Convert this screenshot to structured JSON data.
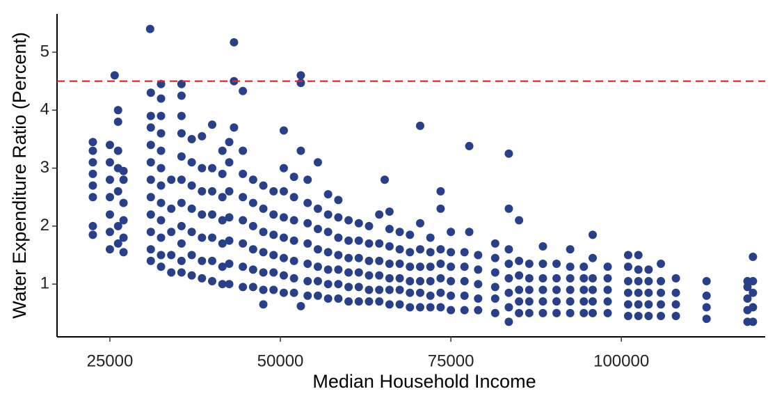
{
  "chart_data": {
    "type": "scatter",
    "xlabel": "Median Household Income",
    "ylabel": "Water Expenditure Ratio (Percent)",
    "color": "#283f8a",
    "xlim": [
      17250,
      121100
    ],
    "ylim": [
      0.09,
      5.66
    ],
    "xticks": [
      25000,
      50000,
      75000,
      100000
    ],
    "yticks": [
      1,
      2,
      3,
      4,
      5
    ],
    "reference_line": {
      "value": 4.5,
      "color": "#e3262b",
      "dashed": true
    },
    "x": [
      22500,
      22500,
      22500,
      22500,
      22500,
      22500,
      22500,
      22500,
      25000,
      25000,
      25000,
      25000,
      25000,
      25000,
      25000,
      25700,
      26200,
      26200,
      26200,
      26200,
      26200,
      26200,
      26200,
      27000,
      27000,
      27000,
      27000,
      27000,
      27000,
      30900,
      31000,
      31000,
      31000,
      31000,
      31000,
      31000,
      31000,
      31000,
      31000,
      31000,
      31000,
      32500,
      32500,
      32500,
      32500,
      32500,
      32500,
      32500,
      32500,
      32500,
      32500,
      32500,
      32500,
      34000,
      34000,
      34000,
      34000,
      34000,
      35500,
      35500,
      35500,
      35500,
      35500,
      35500,
      35500,
      35500,
      35500,
      35500,
      35500,
      37000,
      37000,
      37000,
      37000,
      37000,
      37000,
      37000,
      38500,
      38500,
      38500,
      38500,
      38500,
      38500,
      38500,
      40000,
      40000,
      40000,
      40000,
      40000,
      40000,
      40000,
      41500,
      41500,
      41500,
      41500,
      41500,
      41500,
      41500,
      42500,
      42500,
      42500,
      42500,
      42500,
      42500,
      42500,
      43200,
      43200,
      43200,
      44500,
      44500,
      44500,
      44500,
      44500,
      44500,
      44500,
      44500,
      46000,
      46000,
      46000,
      46000,
      46000,
      46000,
      47500,
      47500,
      47500,
      47500,
      47500,
      47500,
      47500,
      49000,
      49000,
      49000,
      49000,
      49000,
      49000,
      50500,
      50500,
      50500,
      50500,
      50500,
      50500,
      50500,
      50500,
      52000,
      52000,
      52000,
      52000,
      52000,
      52000,
      52000,
      53000,
      53000,
      53000,
      53000,
      54000,
      54000,
      54000,
      54000,
      54000,
      54000,
      54000,
      55500,
      55500,
      55500,
      55500,
      55500,
      55500,
      55500,
      57000,
      57000,
      57000,
      57000,
      57000,
      57000,
      57000,
      58500,
      58500,
      58500,
      58500,
      58500,
      58500,
      58500,
      60000,
      60000,
      60000,
      60000,
      60000,
      60000,
      61500,
      61500,
      61500,
      61500,
      61500,
      61500,
      63000,
      63000,
      63000,
      63000,
      63000,
      63000,
      64500,
      64500,
      64500,
      64500,
      64500,
      64500,
      65300,
      66000,
      66000,
      66000,
      66000,
      66000,
      66000,
      66000,
      67500,
      67500,
      67500,
      67500,
      67500,
      67500,
      69000,
      69000,
      69000,
      69000,
      69000,
      69000,
      70500,
      70500,
      70500,
      70500,
      70500,
      70500,
      70500,
      72000,
      72000,
      72000,
      72000,
      72000,
      72000,
      73500,
      73500,
      73500,
      73500,
      73500,
      73500,
      73500,
      75000,
      75000,
      75000,
      75000,
      75000,
      75000,
      77000,
      77000,
      77000,
      77000,
      77000,
      77700,
      77700,
      79000,
      79000,
      79000,
      79000,
      79000,
      81500,
      81500,
      81500,
      81500,
      81500,
      81500,
      83500,
      83500,
      83500,
      83500,
      83500,
      83500,
      83500,
      83500,
      85000,
      85000,
      85000,
      85000,
      85000,
      85000,
      86500,
      86500,
      86500,
      86500,
      86500,
      88500,
      88500,
      88500,
      88500,
      88500,
      88500,
      90500,
      90500,
      90500,
      90500,
      90500,
      92500,
      92500,
      92500,
      92500,
      92500,
      92500,
      94500,
      94500,
      94500,
      94500,
      94500,
      95800,
      95800,
      95800,
      95800,
      95800,
      95800,
      98000,
      98000,
      98000,
      98000,
      98000,
      101000,
      101000,
      101000,
      101000,
      101000,
      101000,
      102500,
      102500,
      102500,
      102500,
      102500,
      102500,
      104000,
      104000,
      104000,
      104000,
      104000,
      105800,
      105800,
      105800,
      105800,
      105800,
      108000,
      108000,
      108000,
      108000,
      112500,
      112500,
      112500,
      112500,
      118500,
      118500,
      118500,
      118500,
      118500,
      119300,
      119300,
      119300,
      119300,
      119300
    ],
    "values": [
      1.85,
      2.0,
      2.5,
      2.7,
      2.9,
      3.1,
      3.3,
      3.45,
      1.6,
      1.9,
      2.2,
      2.5,
      2.8,
      3.1,
      3.4,
      4.6,
      1.7,
      2.0,
      2.6,
      3.0,
      3.3,
      3.8,
      4.0,
      1.55,
      1.8,
      2.1,
      2.4,
      2.8,
      2.95,
      5.4,
      1.4,
      1.6,
      1.9,
      2.2,
      2.5,
      2.8,
      3.1,
      3.4,
      3.7,
      3.9,
      4.3,
      1.3,
      1.5,
      1.8,
      2.1,
      2.4,
      2.7,
      3.0,
      3.3,
      3.6,
      3.9,
      4.2,
      4.45,
      1.2,
      1.5,
      1.9,
      2.3,
      2.8,
      1.2,
      1.4,
      1.7,
      2.0,
      2.4,
      2.8,
      3.2,
      3.6,
      3.9,
      4.25,
      4.45,
      1.15,
      1.5,
      1.9,
      2.3,
      2.7,
      3.1,
      3.5,
      1.1,
      1.4,
      1.8,
      2.2,
      2.6,
      3.0,
      3.55,
      1.05,
      1.4,
      1.8,
      2.2,
      2.6,
      3.0,
      3.75,
      1.0,
      1.3,
      1.7,
      2.1,
      2.5,
      2.9,
      3.3,
      1.0,
      1.35,
      1.75,
      2.15,
      2.6,
      3.1,
      3.45,
      5.17,
      4.5,
      3.7,
      0.95,
      1.3,
      1.7,
      2.1,
      2.5,
      2.9,
      3.3,
      4.33,
      0.95,
      1.25,
      1.6,
      2.0,
      2.4,
      2.8,
      0.65,
      0.9,
      1.2,
      1.55,
      1.9,
      2.3,
      2.7,
      0.9,
      1.2,
      1.5,
      1.85,
      2.2,
      2.6,
      0.85,
      1.15,
      1.45,
      1.8,
      2.15,
      2.6,
      3.0,
      3.65,
      0.85,
      1.1,
      1.4,
      1.75,
      2.1,
      2.5,
      2.85,
      0.62,
      4.6,
      4.47,
      3.3,
      0.8,
      1.05,
      1.35,
      1.7,
      2.05,
      2.4,
      2.8,
      0.8,
      1.05,
      1.3,
      1.6,
      1.95,
      2.3,
      3.1,
      0.75,
      1.0,
      1.25,
      1.55,
      1.9,
      2.2,
      2.55,
      0.75,
      1.0,
      1.25,
      1.5,
      1.8,
      2.15,
      2.45,
      0.7,
      0.95,
      1.2,
      1.45,
      1.75,
      2.1,
      0.7,
      0.95,
      1.2,
      1.45,
      1.75,
      2.05,
      0.7,
      0.9,
      1.15,
      1.4,
      1.7,
      2.0,
      0.7,
      0.9,
      1.15,
      1.4,
      1.7,
      2.2,
      2.8,
      0.65,
      0.9,
      1.1,
      1.35,
      1.65,
      1.95,
      2.25,
      0.65,
      0.9,
      1.1,
      1.35,
      1.6,
      1.9,
      0.6,
      0.85,
      1.05,
      1.3,
      1.55,
      1.85,
      0.6,
      0.85,
      1.05,
      1.3,
      1.6,
      2.05,
      3.73,
      0.6,
      0.8,
      1.05,
      1.3,
      1.55,
      1.8,
      0.6,
      0.85,
      1.1,
      1.35,
      1.6,
      2.3,
      2.6,
      0.55,
      0.8,
      1.05,
      1.3,
      1.55,
      1.9,
      0.55,
      0.8,
      1.05,
      1.3,
      1.55,
      3.38,
      1.9,
      0.55,
      0.75,
      1.0,
      1.25,
      1.5,
      0.5,
      0.75,
      0.95,
      1.2,
      1.45,
      1.7,
      0.35,
      0.6,
      0.85,
      1.1,
      1.35,
      1.6,
      2.3,
      3.25,
      0.5,
      0.7,
      0.9,
      1.15,
      1.4,
      2.1,
      0.5,
      0.7,
      0.9,
      1.1,
      1.35,
      0.5,
      0.7,
      0.9,
      1.1,
      1.35,
      1.65,
      0.5,
      0.7,
      0.9,
      1.1,
      1.35,
      0.5,
      0.7,
      0.9,
      1.1,
      1.3,
      1.6,
      0.5,
      0.7,
      0.9,
      1.1,
      1.3,
      0.5,
      0.7,
      0.9,
      1.1,
      1.45,
      1.85,
      0.5,
      0.7,
      0.9,
      1.1,
      1.3,
      0.45,
      0.65,
      0.85,
      1.05,
      1.3,
      1.5,
      0.45,
      0.65,
      0.85,
      1.05,
      1.25,
      1.5,
      0.45,
      0.65,
      0.85,
      1.05,
      1.25,
      0.45,
      0.65,
      0.85,
      1.05,
      1.35,
      0.45,
      0.65,
      0.85,
      1.1,
      0.4,
      0.6,
      0.8,
      1.05,
      0.35,
      0.55,
      0.75,
      0.95,
      1.05,
      0.35,
      0.6,
      0.85,
      1.05,
      1.47
    ]
  }
}
